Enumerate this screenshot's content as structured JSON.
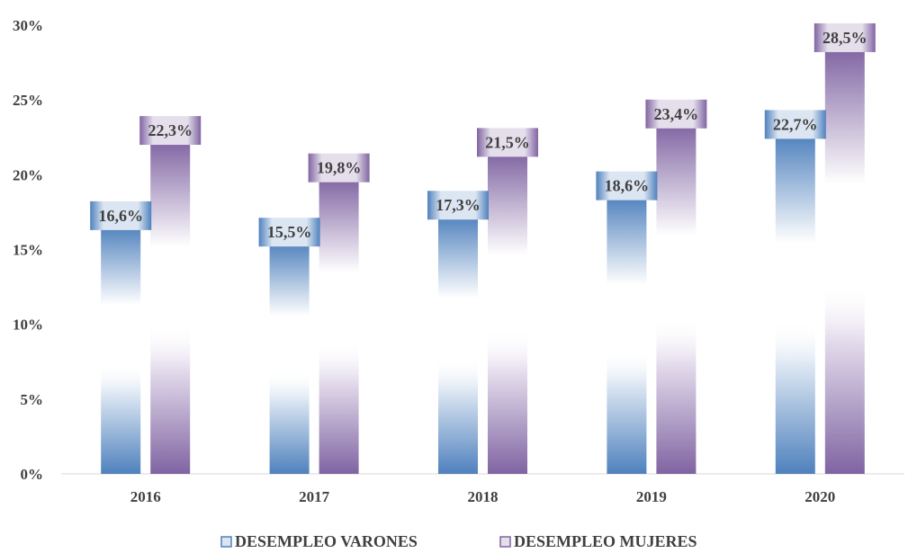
{
  "chart_data": {
    "type": "bar",
    "categories": [
      "2016",
      "2017",
      "2018",
      "2019",
      "2020"
    ],
    "series": [
      {
        "name": "DESEMPLEO VARONES",
        "values": [
          16.6,
          15.5,
          17.3,
          18.6,
          22.7
        ],
        "labels": [
          "16,6%",
          "15,5%",
          "17,3%",
          "18,6%",
          "22,7%"
        ],
        "color": "#4f81bd"
      },
      {
        "name": "DESEMPLEO MUJERES",
        "values": [
          22.3,
          19.8,
          21.5,
          23.4,
          28.5
        ],
        "labels": [
          "22,3%",
          "19,8%",
          "21,5%",
          "23,4%",
          "28,5%"
        ],
        "color": "#8064a2"
      }
    ],
    "y_ticks": [
      "0%",
      "5%",
      "10%",
      "15%",
      "20%",
      "25%",
      "30%"
    ],
    "ylim": [
      0,
      30
    ],
    "legend_position": "bottom",
    "grid": false
  }
}
